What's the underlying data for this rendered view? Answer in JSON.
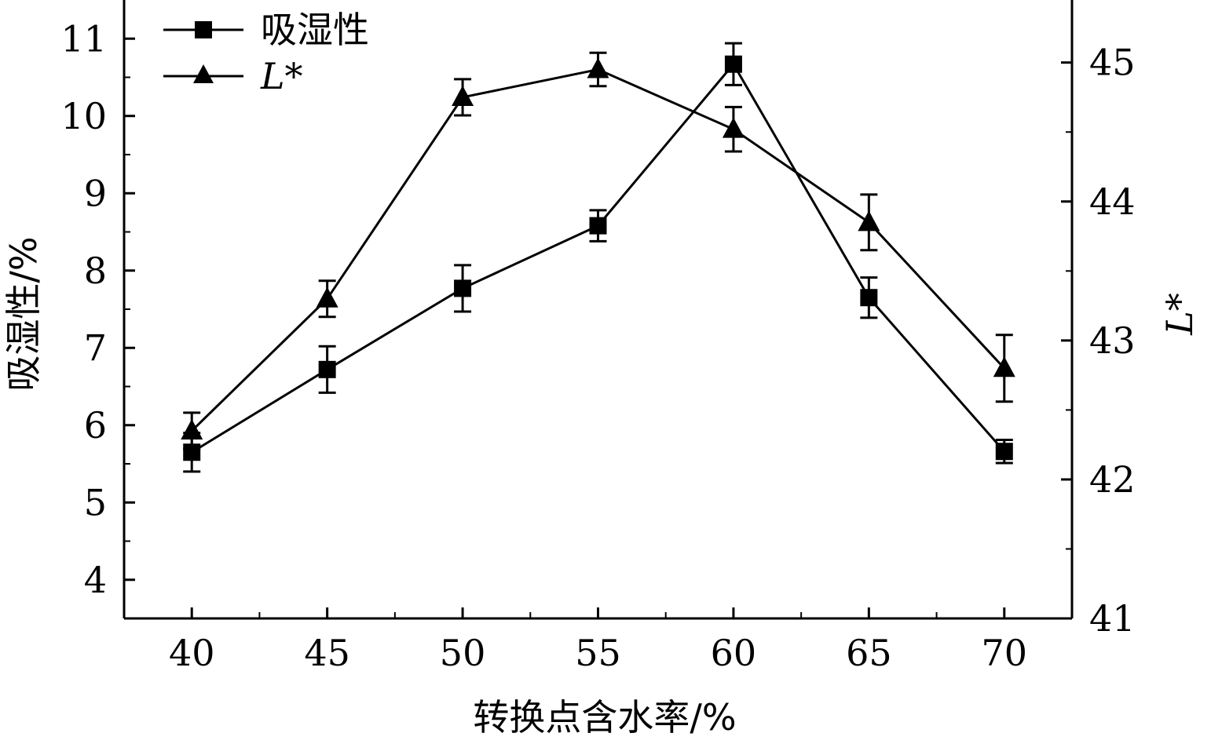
{
  "chart_data": {
    "type": "line",
    "xlabel": "转换点含水率/%",
    "ylabel_left": "吸湿性/%",
    "ylabel_right": "L*",
    "x": [
      40,
      45,
      50,
      55,
      60,
      65,
      70
    ],
    "x_ticks": [
      40,
      45,
      50,
      55,
      60,
      65,
      70
    ],
    "xlim": [
      37.5,
      72.5
    ],
    "ylim_left": [
      3.5,
      11.5
    ],
    "ylim_right": [
      41,
      45.45
    ],
    "y_ticks_left": [
      4,
      5,
      6,
      7,
      8,
      9,
      10,
      11
    ],
    "y_ticks_right": [
      41,
      42,
      43,
      44,
      45
    ],
    "series": [
      {
        "name": "吸湿性",
        "axis": "left",
        "marker": "square",
        "values": [
          5.65,
          6.72,
          7.77,
          8.58,
          10.67,
          7.65,
          5.66
        ],
        "errors": [
          0.25,
          0.3,
          0.3,
          0.2,
          0.27,
          0.26,
          0.15
        ]
      },
      {
        "name": "L*",
        "axis": "right",
        "marker": "triangle",
        "values": [
          42.35,
          43.3,
          44.75,
          44.95,
          44.52,
          43.85,
          42.8
        ],
        "errors": [
          0.13,
          0.13,
          0.13,
          0.12,
          0.16,
          0.2,
          0.24
        ]
      }
    ],
    "grid": false,
    "legend_position": "top-left"
  }
}
